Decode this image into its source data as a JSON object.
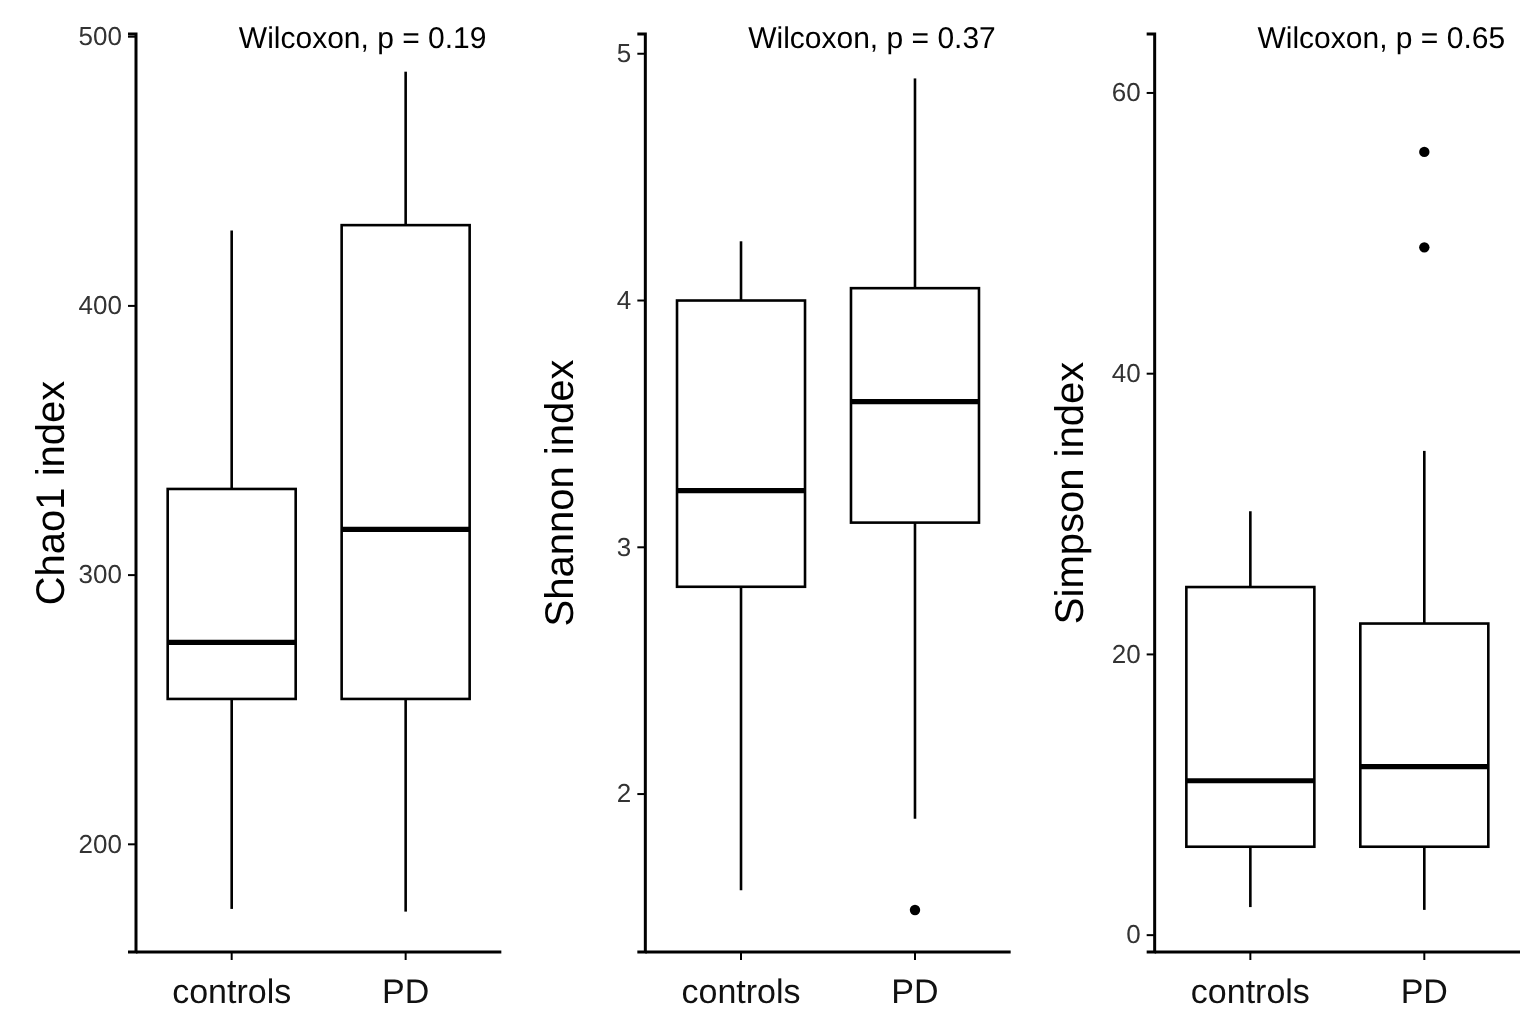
{
  "chart_data": [
    {
      "type": "box",
      "ylabel": "Chao1 index",
      "annotations": [
        "Wilcoxon, p = 0.19"
      ],
      "categories": [
        "controls",
        "PD"
      ],
      "ylim": [
        160,
        501
      ],
      "yticks": [
        200,
        300,
        400,
        500
      ],
      "boxes": [
        {
          "low": 176,
          "q1": 254,
          "median": 275,
          "q3": 332,
          "high": 428
        },
        {
          "low": 175,
          "q1": 254,
          "median": 317,
          "q3": 430,
          "high": 487
        }
      ]
    },
    {
      "type": "box",
      "ylabel": "Shannon index",
      "annotations": [
        "Wilcoxon, p = 0.37"
      ],
      "categories": [
        "controls",
        "PD"
      ],
      "ylim": [
        1.36,
        5.08
      ],
      "yticks": [
        2,
        3,
        4,
        5
      ],
      "boxes": [
        {
          "low": 1.61,
          "q1": 2.84,
          "median": 3.23,
          "q3": 4.0,
          "high": 4.24
        },
        {
          "low": 1.9,
          "q1": 3.1,
          "median": 3.59,
          "q3": 4.05,
          "high": 4.9,
          "outliers": [
            1.53
          ]
        }
      ]
    },
    {
      "type": "box",
      "ylabel": "Simpson index",
      "annotations": [
        "Wilcoxon, p = 0.65"
      ],
      "categories": [
        "controls",
        "PD"
      ],
      "ylim": [
        -1.2,
        64.2
      ],
      "yticks": [
        0,
        20,
        40,
        60
      ],
      "boxes": [
        {
          "low": 2.0,
          "q1": 6.3,
          "median": 11.0,
          "q3": 24.8,
          "high": 30.2
        },
        {
          "low": 1.8,
          "q1": 6.3,
          "median": 12.0,
          "q3": 22.2,
          "high": 34.5,
          "outliers": [
            49.0,
            55.8
          ]
        }
      ]
    }
  ]
}
